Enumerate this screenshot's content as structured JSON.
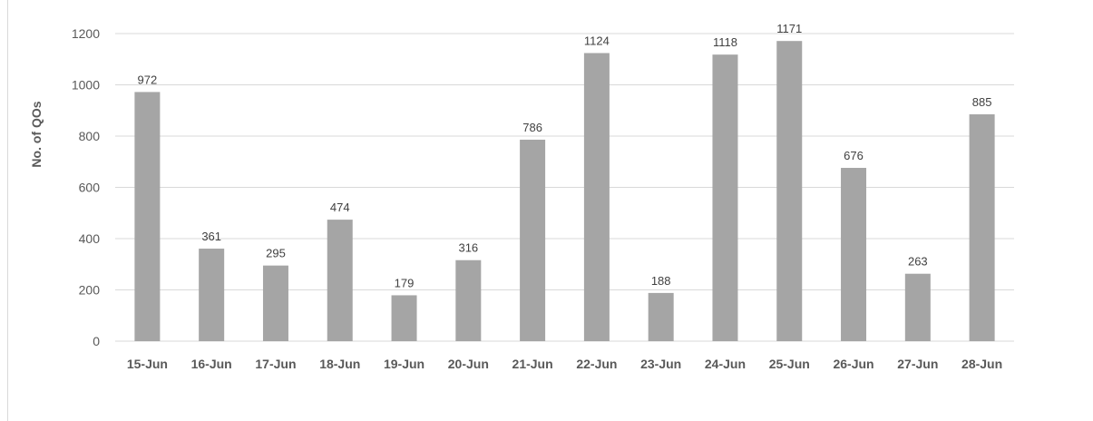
{
  "chart_data": {
    "type": "bar",
    "title": "",
    "xlabel": "",
    "ylabel": "No. of QOs",
    "categories": [
      "15-Jun",
      "16-Jun",
      "17-Jun",
      "18-Jun",
      "19-Jun",
      "20-Jun",
      "21-Jun",
      "22-Jun",
      "23-Jun",
      "24-Jun",
      "25-Jun",
      "26-Jun",
      "27-Jun",
      "28-Jun"
    ],
    "values": [
      972,
      361,
      295,
      474,
      179,
      316,
      786,
      1124,
      188,
      1118,
      1171,
      676,
      263,
      885
    ],
    "ylim": [
      0,
      1200
    ],
    "yticks": [
      0,
      200,
      400,
      600,
      800,
      1000,
      1200
    ],
    "grid": true,
    "legend": "none",
    "bar_color": "#a5a5a5",
    "grid_color": "#d9d9d9"
  }
}
